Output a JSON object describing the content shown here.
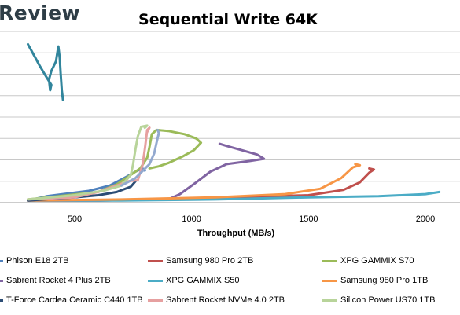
{
  "brand": {
    "logo_text": "Review"
  },
  "chart_data": {
    "type": "line",
    "title": "Sequential Write 64K",
    "xlabel": "Throughput (MB/s)",
    "ylabel": "",
    "xlim": [
      300,
      2150
    ],
    "ylim": [
      0,
      16
    ],
    "x_ticks": [
      500,
      1000,
      1500,
      2000
    ],
    "grid": "horizontal",
    "legend_position": "bottom",
    "series": [
      {
        "name": "Phison E18 2TB",
        "color": "#4f81bd",
        "points": [
          [
            300,
            0.2
          ],
          [
            380,
            0.6
          ],
          [
            450,
            0.8
          ],
          [
            560,
            1.1
          ],
          [
            650,
            1.6
          ],
          [
            720,
            2.4
          ],
          [
            760,
            2.9
          ],
          [
            790,
            3.2
          ],
          [
            800,
            3.0
          ]
        ]
      },
      {
        "name": "Samsung 980 Pro 2TB",
        "color": "#c0504d",
        "points": [
          [
            300,
            0.2
          ],
          [
            600,
            0.2
          ],
          [
            900,
            0.3
          ],
          [
            1200,
            0.5
          ],
          [
            1500,
            0.7
          ],
          [
            1650,
            1.2
          ],
          [
            1720,
            1.9
          ],
          [
            1760,
            2.8
          ],
          [
            1780,
            3.1
          ],
          [
            1760,
            3.2
          ]
        ]
      },
      {
        "name": "XPG GAMMIX S70",
        "color": "#9bbb59",
        "points": [
          [
            300,
            0.3
          ],
          [
            600,
            1.0
          ],
          [
            680,
            1.7
          ],
          [
            740,
            2.6
          ],
          [
            780,
            3.2
          ],
          [
            810,
            4.2
          ],
          [
            820,
            5.2
          ],
          [
            830,
            6.4
          ],
          [
            850,
            6.8
          ],
          [
            900,
            6.7
          ],
          [
            970,
            6.4
          ],
          [
            1020,
            6.0
          ],
          [
            1040,
            5.6
          ],
          [
            1010,
            4.9
          ],
          [
            960,
            4.3
          ],
          [
            900,
            3.7
          ],
          [
            860,
            3.4
          ],
          [
            820,
            3.2
          ]
        ]
      },
      {
        "name": "Sabrent Rocket 4 Plus 2TB",
        "color": "#8064a2",
        "points": [
          [
            300,
            0.2
          ],
          [
            600,
            0.2
          ],
          [
            900,
            0.3
          ],
          [
            950,
            0.8
          ],
          [
            1020,
            1.9
          ],
          [
            1080,
            2.9
          ],
          [
            1150,
            3.6
          ],
          [
            1250,
            3.9
          ],
          [
            1310,
            4.1
          ],
          [
            1280,
            4.5
          ],
          [
            1200,
            5.0
          ],
          [
            1150,
            5.3
          ],
          [
            1120,
            5.5
          ]
        ]
      },
      {
        "name": "XPG GAMMIX S50",
        "color": "#4bacc6",
        "points": [
          [
            300,
            0.2
          ],
          [
            700,
            0.2
          ],
          [
            1100,
            0.3
          ],
          [
            1500,
            0.5
          ],
          [
            1800,
            0.6
          ],
          [
            2000,
            0.8
          ],
          [
            2060,
            1.0
          ]
        ]
      },
      {
        "name": "Samsung 980 Pro 1TB",
        "color": "#f79646",
        "points": [
          [
            300,
            0.2
          ],
          [
            700,
            0.3
          ],
          [
            1100,
            0.5
          ],
          [
            1400,
            0.8
          ],
          [
            1550,
            1.3
          ],
          [
            1640,
            2.3
          ],
          [
            1690,
            3.3
          ],
          [
            1720,
            3.5
          ],
          [
            1700,
            3.6
          ]
        ]
      },
      {
        "name": "T-Force Cardea Ceramic C440 1TB",
        "color": "#2c4d75",
        "points": [
          [
            300,
            0.2
          ],
          [
            500,
            0.5
          ],
          [
            600,
            0.7
          ],
          [
            680,
            1.0
          ],
          [
            740,
            1.5
          ],
          [
            760,
            2.0
          ]
        ]
      },
      {
        "name": "Sabrent Rocket NVMe 4.0 2TB",
        "color": "#e6a0a0",
        "points": [
          [
            300,
            0.3
          ],
          [
            500,
            0.5
          ],
          [
            600,
            1.0
          ],
          [
            680,
            1.6
          ],
          [
            730,
            2.0
          ],
          [
            770,
            2.1
          ],
          [
            790,
            3.5
          ],
          [
            800,
            5.0
          ],
          [
            810,
            6.8
          ],
          [
            820,
            7.0
          ],
          [
            810,
            6.6
          ]
        ]
      },
      {
        "name": "Silicon Power US70 1TB",
        "color": "#b8d49a",
        "points": [
          [
            300,
            0.3
          ],
          [
            500,
            0.7
          ],
          [
            620,
            1.1
          ],
          [
            700,
            1.6
          ],
          [
            740,
            2.6
          ],
          [
            750,
            3.6
          ],
          [
            760,
            5.0
          ],
          [
            770,
            6.2
          ],
          [
            785,
            7.1
          ],
          [
            810,
            7.2
          ],
          [
            800,
            7.0
          ]
        ]
      },
      {
        "name": "",
        "color": "#93a9cf",
        "legend": false,
        "points": [
          [
            700,
            1.6
          ],
          [
            760,
            2.3
          ],
          [
            820,
            3.6
          ],
          [
            840,
            4.6
          ],
          [
            850,
            5.6
          ],
          [
            860,
            6.5
          ],
          [
            855,
            6.8
          ]
        ]
      },
      {
        "name": "",
        "color": "#31859c",
        "legend": false,
        "points": [
          [
            300,
            14.8
          ],
          [
            315,
            14.2
          ],
          [
            330,
            13.6
          ],
          [
            350,
            12.8
          ],
          [
            380,
            11.7
          ],
          [
            400,
            11.0
          ],
          [
            395,
            10.5
          ],
          [
            390,
            11.5
          ],
          [
            400,
            12.3
          ],
          [
            420,
            13.2
          ],
          [
            430,
            14.6
          ],
          [
            436,
            13.5
          ],
          [
            440,
            12.0
          ],
          [
            445,
            10.5
          ],
          [
            450,
            9.6
          ]
        ]
      }
    ]
  },
  "legend_columns": [
    [
      "Phison E18 2TB",
      "Sabrent Rocket 4 Plus 2TB",
      "T-Force Cardea Ceramic C440 1TB"
    ],
    [
      "Samsung 980 Pro 2TB",
      "XPG GAMMIX S50",
      "Sabrent Rocket NVMe 4.0 2TB"
    ],
    [
      "XPG GAMMIX S70",
      "Samsung 980 Pro 1TB",
      "Silicon Power US70 1TB"
    ]
  ]
}
